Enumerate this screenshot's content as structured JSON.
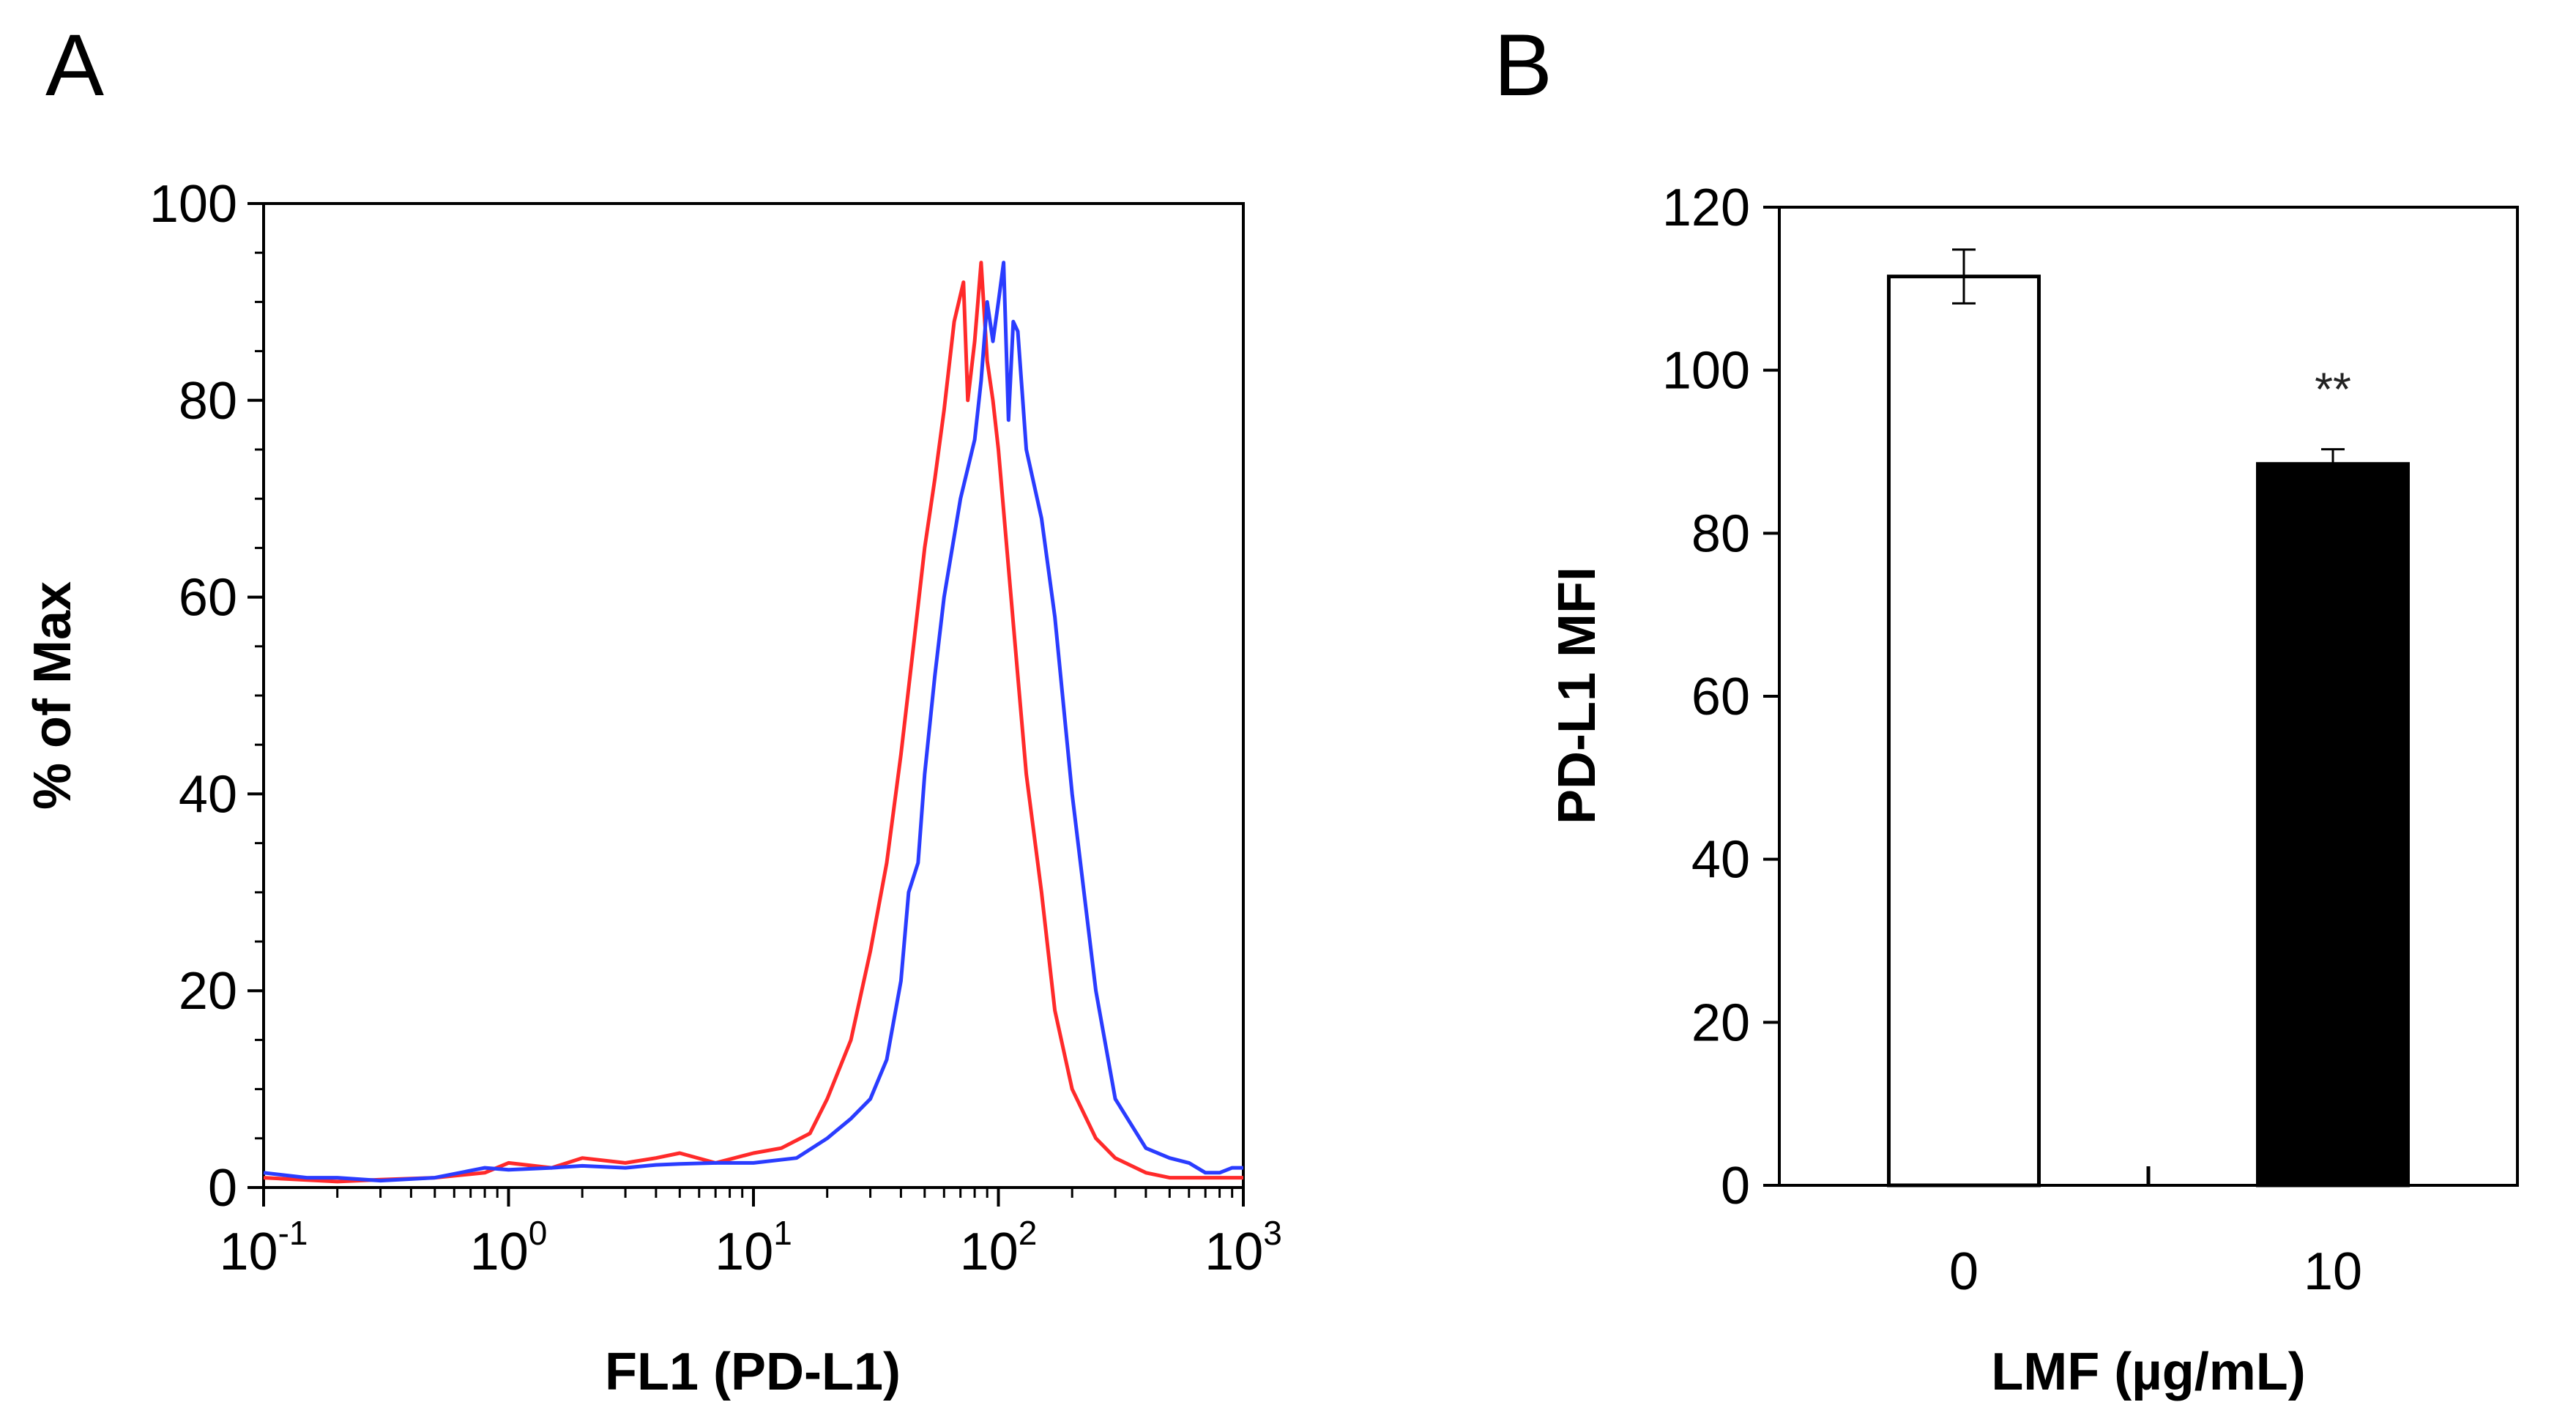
{
  "chart_data": [
    {
      "panel": "A",
      "type": "line",
      "title": "",
      "xlabel": "FL1 (PD-L1)",
      "ylabel": "% of Max",
      "xscale": "log",
      "xlim": [
        0.1,
        1000
      ],
      "ylim": [
        0,
        100
      ],
      "yticks": [
        "0",
        "20",
        "40",
        "60",
        "80",
        "100"
      ],
      "xticks": [
        {
          "base": "10",
          "exp": "-1",
          "value": 0.1
        },
        {
          "base": "10",
          "exp": "0",
          "value": 1
        },
        {
          "base": "10",
          "exp": "1",
          "value": 10
        },
        {
          "base": "10",
          "exp": "2",
          "value": 100
        },
        {
          "base": "10",
          "exp": "3",
          "value": 1000
        }
      ],
      "series": [
        {
          "name": "red",
          "color": "#ff2a2a",
          "points": [
            [
              0.1,
              1
            ],
            [
              0.2,
              0.6
            ],
            [
              0.3,
              0.8
            ],
            [
              0.5,
              1
            ],
            [
              0.8,
              1.5
            ],
            [
              1,
              2.5
            ],
            [
              1.5,
              2
            ],
            [
              2,
              3
            ],
            [
              3,
              2.5
            ],
            [
              4,
              3
            ],
            [
              5,
              3.5
            ],
            [
              7,
              2.5
            ],
            [
              10,
              3.5
            ],
            [
              13,
              4
            ],
            [
              17,
              5.5
            ],
            [
              20,
              9
            ],
            [
              25,
              15
            ],
            [
              30,
              24
            ],
            [
              35,
              33
            ],
            [
              40,
              44
            ],
            [
              45,
              55
            ],
            [
              50,
              65
            ],
            [
              55,
              72
            ],
            [
              60,
              79
            ],
            [
              66,
              88
            ],
            [
              72,
              92
            ],
            [
              75,
              80
            ],
            [
              80,
              86
            ],
            [
              85,
              94
            ],
            [
              90,
              84
            ],
            [
              95,
              80
            ],
            [
              100,
              75
            ],
            [
              110,
              63
            ],
            [
              120,
              52
            ],
            [
              130,
              42
            ],
            [
              150,
              30
            ],
            [
              170,
              18
            ],
            [
              200,
              10
            ],
            [
              250,
              5
            ],
            [
              300,
              3
            ],
            [
              400,
              1.5
            ],
            [
              500,
              1
            ],
            [
              700,
              1
            ],
            [
              1000,
              1
            ]
          ]
        },
        {
          "name": "blue",
          "color": "#2a3cff",
          "points": [
            [
              0.1,
              1.5
            ],
            [
              0.15,
              1
            ],
            [
              0.2,
              1
            ],
            [
              0.3,
              0.7
            ],
            [
              0.5,
              1
            ],
            [
              0.8,
              2
            ],
            [
              1,
              1.8
            ],
            [
              1.5,
              2
            ],
            [
              2,
              2.2
            ],
            [
              3,
              2
            ],
            [
              4,
              2.3
            ],
            [
              5,
              2.4
            ],
            [
              7,
              2.5
            ],
            [
              10,
              2.5
            ],
            [
              15,
              3
            ],
            [
              20,
              5
            ],
            [
              25,
              7
            ],
            [
              30,
              9
            ],
            [
              35,
              13
            ],
            [
              40,
              21
            ],
            [
              43,
              30
            ],
            [
              47,
              33
            ],
            [
              50,
              42
            ],
            [
              55,
              52
            ],
            [
              60,
              60
            ],
            [
              70,
              70
            ],
            [
              80,
              76
            ],
            [
              85,
              82
            ],
            [
              90,
              90
            ],
            [
              95,
              86
            ],
            [
              100,
              90
            ],
            [
              105,
              94
            ],
            [
              110,
              78
            ],
            [
              115,
              88
            ],
            [
              120,
              87
            ],
            [
              130,
              75
            ],
            [
              150,
              68
            ],
            [
              170,
              58
            ],
            [
              200,
              40
            ],
            [
              250,
              20
            ],
            [
              300,
              9
            ],
            [
              400,
              4
            ],
            [
              500,
              3
            ],
            [
              600,
              2.5
            ],
            [
              700,
              1.5
            ],
            [
              800,
              1.5
            ],
            [
              900,
              2
            ],
            [
              1000,
              2
            ]
          ]
        }
      ]
    },
    {
      "panel": "B",
      "type": "bar",
      "title": "",
      "xlabel": "LMF (µg/mL)",
      "ylabel": "PD-L1 MFI",
      "ylim": [
        0,
        120
      ],
      "yticks": [
        "0",
        "20",
        "40",
        "60",
        "80",
        "100",
        "120"
      ],
      "categories": [
        "0",
        "10"
      ],
      "values": [
        111.5,
        88.5
      ],
      "errors": [
        3.3,
        1.8
      ],
      "bar_colors": [
        "#ffffff",
        "#000000"
      ],
      "annotations": [
        {
          "category": "10",
          "text": "**"
        }
      ]
    }
  ]
}
